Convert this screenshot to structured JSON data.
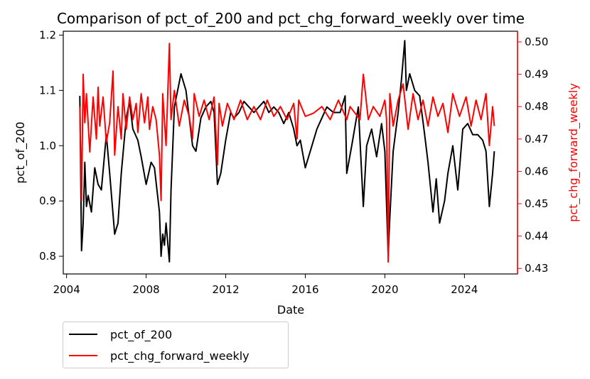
{
  "chart_data": {
    "type": "line",
    "title": "Comparison of pct_of_200 and pct_chg_forward_weekly over time",
    "xlabel": "Date",
    "ylabel_left": "pct_of_200",
    "ylabel_right": "pct_chg_forward_weekly",
    "x_ticks": [
      "2004",
      "2008",
      "2012",
      "2016",
      "2020",
      "2024"
    ],
    "y_left_ticks": [
      "0.8",
      "0.9",
      "1.0",
      "1.1",
      "1.2"
    ],
    "y_right_ticks": [
      "0.43",
      "0.44",
      "0.45",
      "0.46",
      "0.47",
      "0.48",
      "0.49",
      "0.50"
    ],
    "xlim": [
      "2003-11-01",
      "2026-09-01"
    ],
    "ylim_left": [
      0.768,
      1.207
    ],
    "ylim_right": [
      0.4283,
      0.5033
    ],
    "right_axis_color": "#ff0000",
    "legend_position": "below-left",
    "grid": false,
    "series": [
      {
        "name": "pct_of_200",
        "axis": "left",
        "color": "#000000",
        "x": [
          "2004-09",
          "2004-10",
          "2004-11",
          "2004-12",
          "2005-01",
          "2005-02",
          "2005-04",
          "2005-06",
          "2005-08",
          "2005-10",
          "2006-01",
          "2006-03",
          "2006-06",
          "2006-08",
          "2006-10",
          "2007-01",
          "2007-03",
          "2007-05",
          "2007-08",
          "2007-10",
          "2008-01",
          "2008-04",
          "2008-06",
          "2008-09",
          "2008-10",
          "2008-11",
          "2008-12",
          "2009-01",
          "2009-03",
          "2009-04",
          "2009-06",
          "2009-08",
          "2009-10",
          "2010-01",
          "2010-05",
          "2010-07",
          "2010-10",
          "2011-01",
          "2011-04",
          "2011-06",
          "2011-08",
          "2011-10",
          "2012-01",
          "2012-04",
          "2012-06",
          "2012-09",
          "2012-12",
          "2013-03",
          "2013-06",
          "2013-09",
          "2013-12",
          "2014-03",
          "2014-06",
          "2014-09",
          "2014-12",
          "2015-03",
          "2015-06",
          "2015-08",
          "2015-10",
          "2016-01",
          "2016-02",
          "2016-05",
          "2016-08",
          "2016-11",
          "2017-02",
          "2017-06",
          "2017-10",
          "2018-01",
          "2018-02",
          "2018-05",
          "2018-09",
          "2018-12",
          "2019-02",
          "2019-05",
          "2019-08",
          "2019-11",
          "2020-01",
          "2020-03",
          "2020-04",
          "2020-06",
          "2020-09",
          "2020-11",
          "2021-01",
          "2021-02",
          "2021-04",
          "2021-07",
          "2021-10",
          "2022-01",
          "2022-03",
          "2022-06",
          "2022-08",
          "2022-10",
          "2023-01",
          "2023-03",
          "2023-06",
          "2023-09",
          "2023-12",
          "2024-03",
          "2024-06",
          "2024-09",
          "2024-12",
          "2025-02",
          "2025-04",
          "2025-06",
          "2025-07"
        ],
        "values": [
          1.09,
          0.81,
          0.86,
          0.97,
          0.89,
          0.91,
          0.88,
          0.96,
          0.93,
          0.92,
          1.02,
          0.95,
          0.84,
          0.86,
          0.95,
          1.05,
          1.08,
          1.03,
          1.01,
          0.98,
          0.93,
          0.97,
          0.96,
          0.88,
          0.8,
          0.84,
          0.82,
          0.86,
          0.79,
          0.92,
          1.07,
          1.1,
          1.13,
          1.1,
          1.0,
          0.99,
          1.05,
          1.07,
          1.08,
          1.06,
          0.93,
          0.95,
          1.01,
          1.06,
          1.05,
          1.06,
          1.08,
          1.07,
          1.06,
          1.07,
          1.08,
          1.06,
          1.07,
          1.06,
          1.04,
          1.06,
          1.03,
          1.0,
          1.01,
          0.96,
          0.97,
          1.0,
          1.03,
          1.05,
          1.07,
          1.06,
          1.06,
          1.09,
          0.95,
          1.0,
          1.07,
          0.89,
          1.0,
          1.03,
          0.98,
          1.04,
          0.99,
          0.8,
          0.87,
          0.99,
          1.06,
          1.12,
          1.19,
          1.1,
          1.13,
          1.1,
          1.09,
          1.02,
          0.97,
          0.88,
          0.94,
          0.86,
          0.9,
          0.95,
          1.0,
          0.92,
          1.03,
          1.04,
          1.02,
          1.02,
          1.01,
          0.99,
          0.89,
          0.95,
          0.99
        ]
      },
      {
        "name": "pct_chg_forward_weekly",
        "axis": "right",
        "color": "#ff0000",
        "x": [
          "2004-09",
          "2004-10",
          "2004-11",
          "2004-12",
          "2005-01",
          "2005-03",
          "2005-05",
          "2005-07",
          "2005-08",
          "2005-09",
          "2005-11",
          "2006-01",
          "2006-03",
          "2006-05",
          "2006-06",
          "2006-08",
          "2006-10",
          "2006-11",
          "2007-01",
          "2007-03",
          "2007-05",
          "2007-07",
          "2007-08",
          "2007-10",
          "2007-12",
          "2008-02",
          "2008-03",
          "2008-05",
          "2008-07",
          "2008-09",
          "2008-10",
          "2008-11",
          "2009-01",
          "2009-03",
          "2009-04",
          "2009-06",
          "2009-09",
          "2009-12",
          "2010-03",
          "2010-05",
          "2010-06",
          "2010-09",
          "2010-12",
          "2011-03",
          "2011-06",
          "2011-08",
          "2011-09",
          "2011-11",
          "2012-02",
          "2012-06",
          "2012-10",
          "2013-02",
          "2013-06",
          "2013-10",
          "2014-02",
          "2014-06",
          "2014-10",
          "2015-02",
          "2015-06",
          "2015-08",
          "2015-09",
          "2016-01",
          "2016-06",
          "2016-11",
          "2017-04",
          "2017-09",
          "2018-02",
          "2018-04",
          "2018-10",
          "2018-12",
          "2019-03",
          "2019-06",
          "2019-10",
          "2020-01",
          "2020-02",
          "2020-03",
          "2020-04",
          "2020-06",
          "2020-09",
          "2020-12",
          "2021-03",
          "2021-06",
          "2021-09",
          "2021-12",
          "2022-03",
          "2022-06",
          "2022-09",
          "2022-12",
          "2023-03",
          "2023-06",
          "2023-10",
          "2024-02",
          "2024-05",
          "2024-08",
          "2024-11",
          "2025-02",
          "2025-04",
          "2025-06",
          "2025-07"
        ],
        "values": [
          0.48,
          0.451,
          0.49,
          0.475,
          0.484,
          0.466,
          0.483,
          0.47,
          0.486,
          0.474,
          0.483,
          0.469,
          0.475,
          0.491,
          0.465,
          0.48,
          0.47,
          0.484,
          0.473,
          0.483,
          0.476,
          0.481,
          0.472,
          0.484,
          0.475,
          0.483,
          0.473,
          0.48,
          0.476,
          0.465,
          0.451,
          0.484,
          0.468,
          0.4995,
          0.476,
          0.485,
          0.474,
          0.482,
          0.477,
          0.47,
          0.484,
          0.477,
          0.482,
          0.476,
          0.483,
          0.462,
          0.481,
          0.474,
          0.481,
          0.476,
          0.482,
          0.476,
          0.48,
          0.476,
          0.482,
          0.477,
          0.48,
          0.476,
          0.481,
          0.47,
          0.482,
          0.477,
          0.478,
          0.48,
          0.476,
          0.482,
          0.476,
          0.48,
          0.476,
          0.49,
          0.476,
          0.48,
          0.477,
          0.482,
          0.476,
          0.432,
          0.484,
          0.474,
          0.482,
          0.487,
          0.473,
          0.484,
          0.476,
          0.482,
          0.474,
          0.483,
          0.477,
          0.481,
          0.472,
          0.484,
          0.477,
          0.483,
          0.474,
          0.482,
          0.476,
          0.484,
          0.468,
          0.48,
          0.474
        ]
      }
    ]
  }
}
